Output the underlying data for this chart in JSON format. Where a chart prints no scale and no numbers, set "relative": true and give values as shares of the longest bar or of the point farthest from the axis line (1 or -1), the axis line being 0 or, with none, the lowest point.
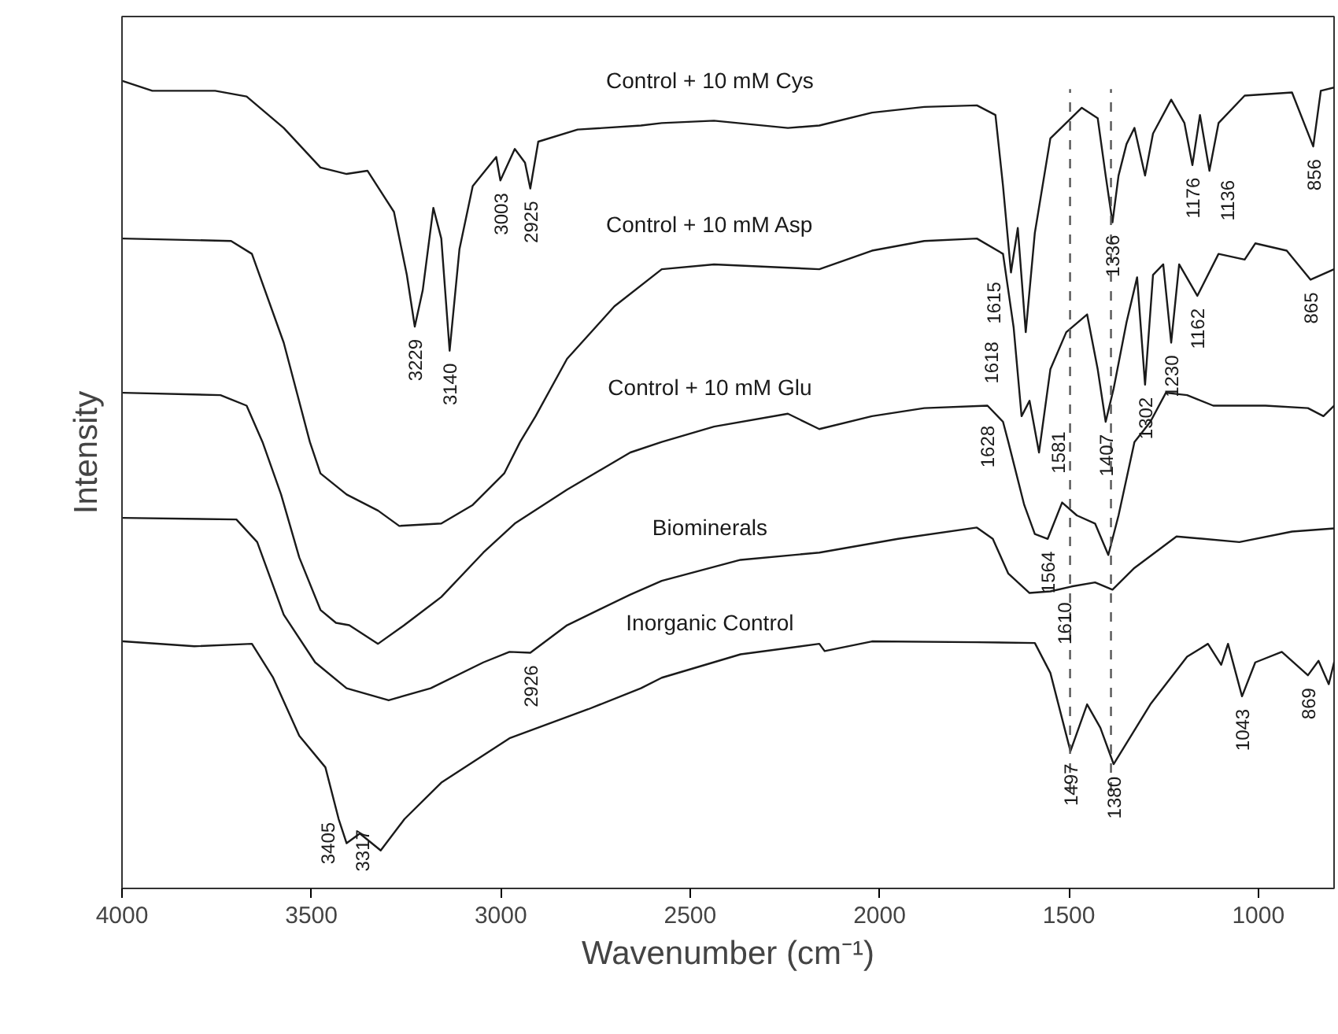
{
  "chart_data": {
    "type": "line",
    "relative": true,
    "xlabel": "Wavenumber (cm⁻¹)",
    "ylabel": "Intensity",
    "xlim": [
      4000,
      800
    ],
    "xticks": [
      4000,
      3500,
      3000,
      2500,
      2000,
      1500,
      1000
    ],
    "grid": false,
    "marker": "none",
    "line_style": "solid",
    "series": [
      {
        "name": "Control + 10 mM Cys",
        "color": "#1a1a1a",
        "x": [
          3997,
          3920,
          3754,
          3671,
          3573,
          3476,
          3407,
          3352,
          3282,
          3248,
          3227,
          3206,
          3178,
          3157,
          3135,
          3109,
          3074,
          3012,
          3001,
          2963,
          2936,
          2922,
          2901,
          2797,
          2630,
          2575,
          2437,
          2242,
          2159,
          2020,
          1882,
          1743,
          1694,
          1674,
          1653,
          1635,
          1614,
          1590,
          1549,
          1466,
          1424,
          1403,
          1385,
          1369,
          1348,
          1327,
          1299,
          1278,
          1230,
          1195,
          1174,
          1154,
          1129,
          1105,
          1036,
          911,
          855,
          835,
          800
        ],
        "values": [
          1.0,
          0.988,
          0.988,
          0.981,
          0.942,
          0.893,
          0.885,
          0.889,
          0.838,
          0.76,
          0.696,
          0.741,
          0.843,
          0.805,
          0.666,
          0.792,
          0.87,
          0.906,
          0.877,
          0.916,
          0.899,
          0.867,
          0.925,
          0.94,
          0.945,
          0.948,
          0.951,
          0.942,
          0.945,
          0.961,
          0.968,
          0.97,
          0.958,
          0.87,
          0.763,
          0.818,
          0.689,
          0.812,
          0.929,
          0.967,
          0.954,
          0.883,
          0.825,
          0.883,
          0.922,
          0.942,
          0.883,
          0.935,
          0.977,
          0.948,
          0.896,
          0.958,
          0.889,
          0.948,
          0.982,
          0.986,
          0.919,
          0.988,
          0.992
        ]
      },
      {
        "name": "Control + 10 mM Asp",
        "color": "#1a1a1a",
        "x": [
          3997,
          3712,
          3657,
          3573,
          3504,
          3476,
          3407,
          3324,
          3268,
          3157,
          3074,
          2991,
          2949,
          2908,
          2825,
          2700,
          2575,
          2437,
          2159,
          2020,
          1882,
          1743,
          1674,
          1646,
          1625,
          1604,
          1579,
          1549,
          1507,
          1452,
          1424,
          1403,
          1382,
          1348,
          1320,
          1299,
          1278,
          1251,
          1230,
          1209,
          1161,
          1105,
          1036,
          1008,
          925,
          862,
          800
        ],
        "values": [
          0.805,
          0.802,
          0.786,
          0.676,
          0.553,
          0.514,
          0.488,
          0.468,
          0.449,
          0.452,
          0.475,
          0.514,
          0.553,
          0.585,
          0.656,
          0.721,
          0.767,
          0.773,
          0.767,
          0.79,
          0.802,
          0.805,
          0.786,
          0.695,
          0.585,
          0.604,
          0.54,
          0.643,
          0.689,
          0.711,
          0.643,
          0.578,
          0.619,
          0.701,
          0.757,
          0.624,
          0.76,
          0.773,
          0.676,
          0.773,
          0.734,
          0.786,
          0.779,
          0.799,
          0.79,
          0.754,
          0.767
        ]
      },
      {
        "name": "Control + 10 mM Glu",
        "color": "#1a1a1a",
        "x": [
          3997,
          3740,
          3671,
          3629,
          3580,
          3532,
          3476,
          3435,
          3400,
          3324,
          3255,
          3157,
          3046,
          2963,
          2825,
          2658,
          2575,
          2437,
          2242,
          2159,
          2020,
          1882,
          1715,
          1674,
          1660,
          1618,
          1590,
          1556,
          1518,
          1479,
          1431,
          1396,
          1369,
          1327,
          1285,
          1244,
          1188,
          1119,
          981,
          869,
          828,
          800
        ],
        "values": [
          0.614,
          0.611,
          0.598,
          0.553,
          0.488,
          0.41,
          0.345,
          0.329,
          0.326,
          0.303,
          0.326,
          0.361,
          0.416,
          0.452,
          0.494,
          0.54,
          0.553,
          0.572,
          0.588,
          0.569,
          0.585,
          0.595,
          0.598,
          0.578,
          0.553,
          0.475,
          0.439,
          0.433,
          0.478,
          0.462,
          0.452,
          0.413,
          0.462,
          0.553,
          0.578,
          0.614,
          0.611,
          0.598,
          0.598,
          0.595,
          0.585,
          0.598
        ]
      },
      {
        "name": "Biominerals",
        "color": "#1a1a1a",
        "x": [
          3997,
          3698,
          3643,
          3573,
          3490,
          3407,
          3296,
          3185,
          3046,
          2977,
          2922,
          2825,
          2658,
          2575,
          2367,
          2159,
          1951,
          1743,
          1701,
          1660,
          1604,
          1549,
          1493,
          1431,
          1385,
          1327,
          1216,
          1050,
          911,
          800
        ],
        "values": [
          0.459,
          0.457,
          0.429,
          0.339,
          0.28,
          0.248,
          0.233,
          0.248,
          0.28,
          0.293,
          0.292,
          0.326,
          0.364,
          0.381,
          0.407,
          0.416,
          0.433,
          0.447,
          0.433,
          0.39,
          0.366,
          0.368,
          0.374,
          0.379,
          0.37,
          0.397,
          0.436,
          0.429,
          0.442,
          0.446
        ]
      },
      {
        "name": "Inorganic Control",
        "color": "#1a1a1a",
        "x": [
          3997,
          3809,
          3657,
          3601,
          3532,
          3463,
          3428,
          3407,
          3372,
          3317,
          3254,
          3157,
          2977,
          2769,
          2630,
          2575,
          2367,
          2159,
          2145,
          2020,
          1743,
          1590,
          1549,
          1496,
          1452,
          1417,
          1382,
          1285,
          1188,
          1133,
          1098,
          1080,
          1043,
          1008,
          938,
          869,
          841,
          814,
          800
        ],
        "values": [
          0.306,
          0.3,
          0.303,
          0.261,
          0.189,
          0.15,
          0.086,
          0.056,
          0.068,
          0.047,
          0.086,
          0.131,
          0.186,
          0.222,
          0.248,
          0.261,
          0.29,
          0.303,
          0.294,
          0.306,
          0.305,
          0.304,
          0.267,
          0.17,
          0.228,
          0.199,
          0.154,
          0.228,
          0.287,
          0.303,
          0.277,
          0.303,
          0.238,
          0.28,
          0.293,
          0.264,
          0.282,
          0.253,
          0.28
        ]
      }
    ],
    "ref_lines": [
      {
        "axis": "x",
        "value": 1497,
        "label": null,
        "color": "#555555",
        "line_style": "dashed"
      },
      {
        "axis": "x",
        "value": 1389,
        "label": null,
        "color": "#555555",
        "line_style": "dashed"
      }
    ],
    "annotations": [
      {
        "text": "3229",
        "x": 3227,
        "y": 0.696
      },
      {
        "text": "3140",
        "x": 3135,
        "y": 0.666
      },
      {
        "text": "3003",
        "x": 3001,
        "y": 0.877
      },
      {
        "text": "2925",
        "x": 2922,
        "y": 0.867
      },
      {
        "text": "2926",
        "x": 2922,
        "y": 0.292
      },
      {
        "text": "3405",
        "x": 3407,
        "y": 0.056
      },
      {
        "text": "3317",
        "x": 3317,
        "y": 0.047
      },
      {
        "text": "1615",
        "x": 1653,
        "y": 0.763
      },
      {
        "text": "1618",
        "x": 1614,
        "y": 0.689
      },
      {
        "text": "1628",
        "x": 1625,
        "y": 0.585
      },
      {
        "text": "1336",
        "x": 1385,
        "y": 0.825
      },
      {
        "text": "1176",
        "x": 1174,
        "y": 0.896
      },
      {
        "text": "1136",
        "x": 1129,
        "y": 0.889
      },
      {
        "text": "856",
        "x": 855,
        "y": 0.919
      },
      {
        "text": "1162",
        "x": 1161,
        "y": 0.734
      },
      {
        "text": "865",
        "x": 862,
        "y": 0.754
      },
      {
        "text": "1302",
        "x": 1299,
        "y": 0.624
      },
      {
        "text": "1230",
        "x": 1230,
        "y": 0.676
      },
      {
        "text": "1581",
        "x": 1579,
        "y": 0.54
      },
      {
        "text": "1407",
        "x": 1403,
        "y": 0.578
      },
      {
        "text": "1564",
        "x": 1556,
        "y": 0.433
      },
      {
        "text": "1610",
        "x": 1604,
        "y": 0.366
      },
      {
        "text": "1497",
        "x": 1496,
        "y": 0.17
      },
      {
        "text": "1380",
        "x": 1382,
        "y": 0.154
      },
      {
        "text": "1043",
        "x": 1043,
        "y": 0.238
      },
      {
        "text": "869",
        "x": 869,
        "y": 0.264
      }
    ]
  }
}
